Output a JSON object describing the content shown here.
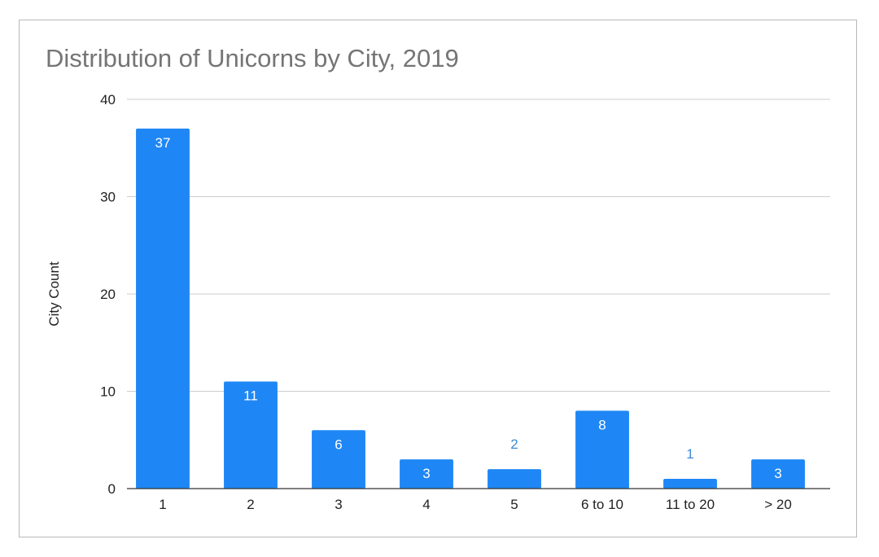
{
  "chart_data": {
    "type": "bar",
    "title": "Distribution of Unicorns by City, 2019",
    "xlabel": "",
    "ylabel": "City Count",
    "categories": [
      "1",
      "2",
      "3",
      "4",
      "5",
      "6 to 10",
      "11 to 20",
      "> 20"
    ],
    "values": [
      37,
      11,
      6,
      3,
      2,
      8,
      1,
      3
    ],
    "ylim": [
      0,
      40
    ],
    "yticks": [
      0,
      10,
      20,
      30,
      40
    ],
    "grid": true,
    "legend": "none",
    "colors": {
      "bar": "#1f87f5",
      "label_inside": "#ffffff",
      "label_outside": "#3a8bd6",
      "grid": "#cccccc",
      "axis": "#333333",
      "title": "#757575"
    }
  }
}
